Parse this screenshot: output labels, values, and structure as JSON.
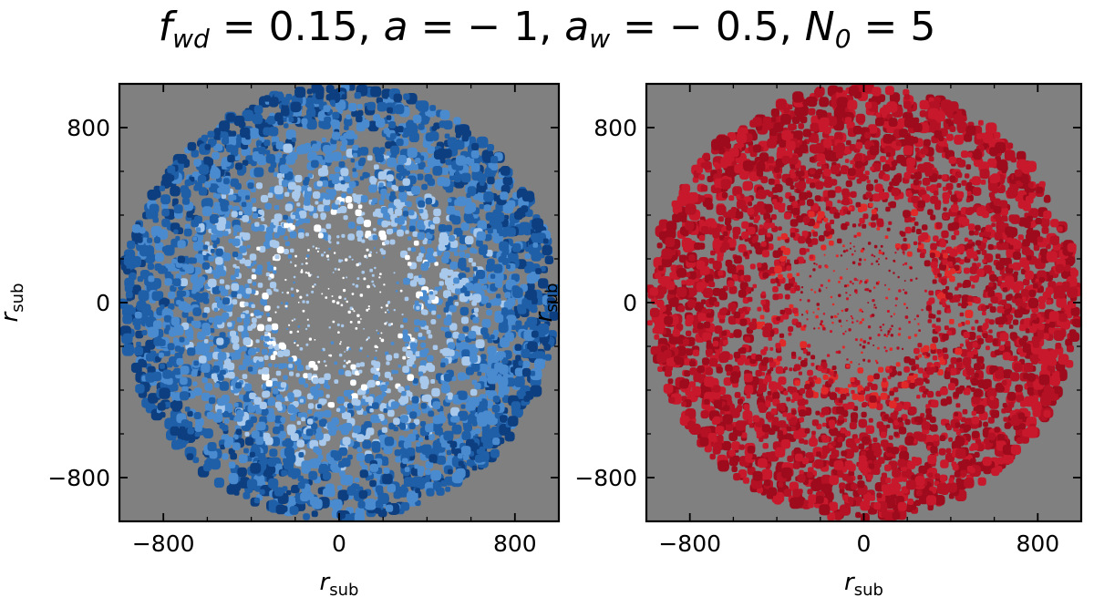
{
  "title": {
    "parts": [
      {
        "sym": "f",
        "sub": "wd",
        "eq": " = 0.15, "
      },
      {
        "sym": "a",
        "sub": "",
        "eq": " = − 1, "
      },
      {
        "sym": "a",
        "sub": "w",
        "eq": " = − 0.5, "
      },
      {
        "sym": "N",
        "sub": "0",
        "eq": " = 5"
      }
    ]
  },
  "chart_data": [
    {
      "type": "heatmap",
      "panel": "left",
      "xlabel": "r_sub",
      "ylabel": "r_sub",
      "xlim": [
        -1000,
        1000
      ],
      "ylim": [
        -1000,
        1000
      ],
      "xticks": [
        -800,
        0,
        800
      ],
      "yticks": [
        -800,
        0,
        800
      ],
      "xtick_labels": [
        "−800",
        "0",
        "800"
      ],
      "ytick_labels": [
        "−800",
        "0",
        "800"
      ],
      "disk_radius": 990,
      "colormap": "blues",
      "background_color": "#808080",
      "colors": [
        "#0d3f80",
        "#1f5fa8",
        "#4a8bd0",
        "#a8c9ec",
        "#ffffff"
      ]
    },
    {
      "type": "heatmap",
      "panel": "right",
      "xlabel": "r_sub",
      "ylabel": "r_sub",
      "xlim": [
        -1000,
        1000
      ],
      "ylim": [
        -1000,
        1000
      ],
      "xticks": [
        -800,
        0,
        800
      ],
      "yticks": [
        -800,
        0,
        800
      ],
      "xtick_labels": [
        "−800",
        "0",
        "800"
      ],
      "ytick_labels": [
        "−800",
        "0",
        "800"
      ],
      "disk_radius": 990,
      "colormap": "reds",
      "background_color": "#808080",
      "colors": [
        "#9e0b1c",
        "#b51124",
        "#c8182b",
        "#e02a2a"
      ]
    }
  ]
}
